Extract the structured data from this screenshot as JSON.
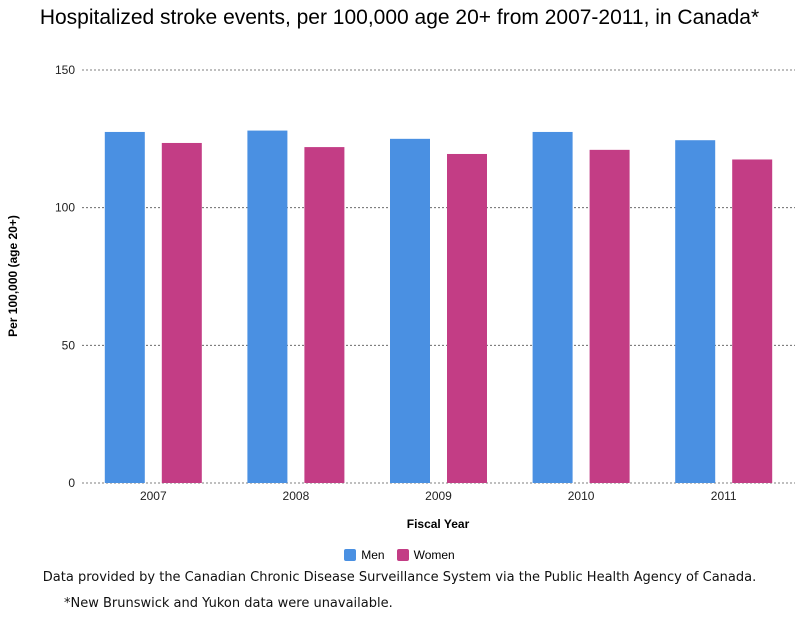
{
  "chart_data": {
    "type": "bar",
    "title": "Hospitalized stroke events, per 100,000 age 20+ from 2007-2011, in Canada*",
    "xlabel": "Fiscal Year",
    "ylabel": "Per 100,000 (age 20+)",
    "categories": [
      "2007",
      "2008",
      "2009",
      "2010",
      "2011"
    ],
    "series": [
      {
        "name": "Men",
        "color": "#4a90e2",
        "values": [
          127.5,
          128,
          125,
          127.5,
          124.5
        ]
      },
      {
        "name": "Women",
        "color": "#c33d85",
        "values": [
          123.5,
          122,
          119.5,
          121,
          117.5
        ]
      }
    ],
    "ylim": [
      0,
      150
    ],
    "yticks": [
      "0",
      "50",
      "100",
      "150"
    ],
    "grid": true,
    "legend_position": "bottom"
  },
  "notes": {
    "source": "Data provided by the Canadian Chronic Disease Surveillance System via the Public Health Agency of Canada.",
    "missing": "*New Brunswick and Yukon data were unavailable."
  }
}
